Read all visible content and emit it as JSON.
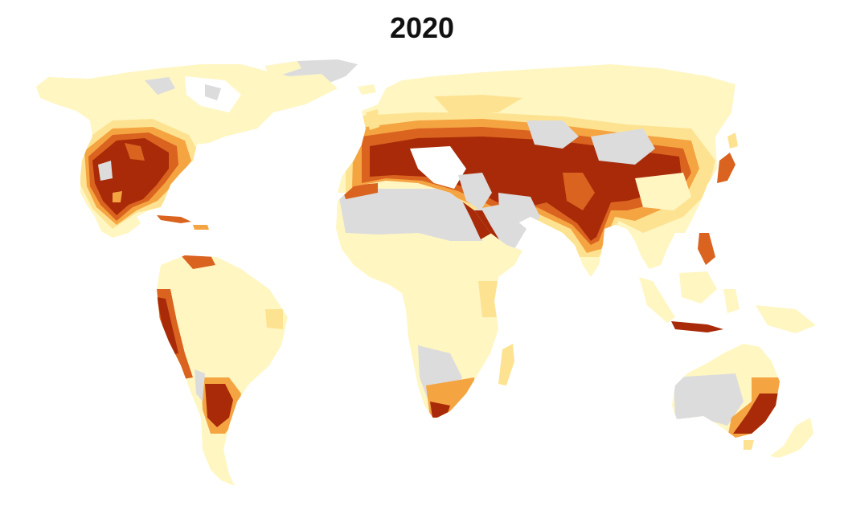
{
  "map": {
    "title": "2020",
    "colors": {
      "no_data": "#dcdcdc",
      "low": "#fff6c2",
      "low_medium": "#fde391",
      "medium_high": "#f5a442",
      "high": "#d9631f",
      "extremely_high": "#a82a08"
    }
  }
}
